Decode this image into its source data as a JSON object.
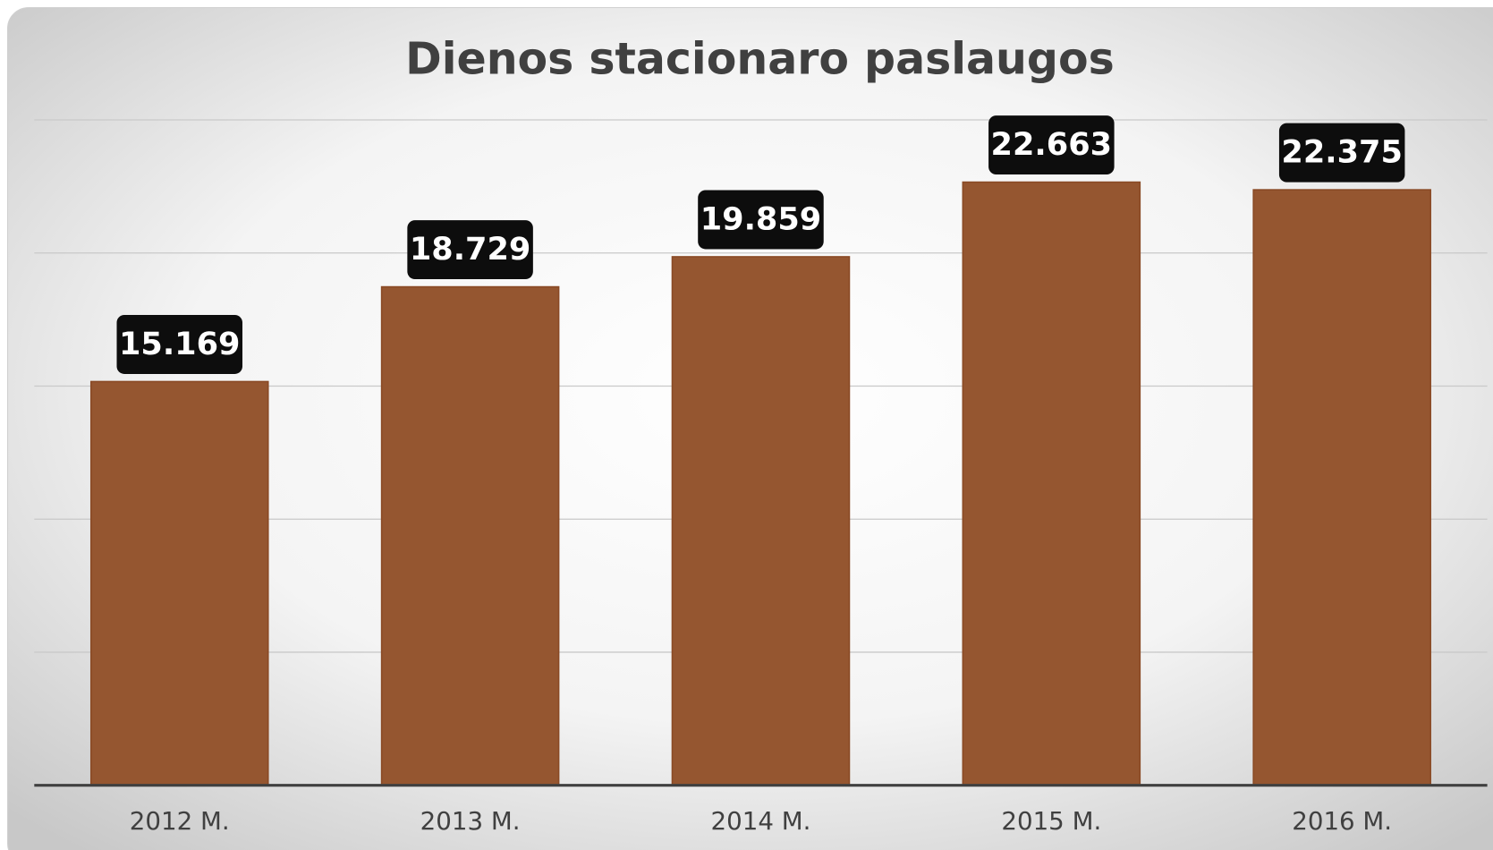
{
  "chart_data": {
    "type": "bar",
    "title": "Dienos stacionaro paslaugos",
    "categories": [
      "2012 M.",
      "2013 M.",
      "2014 M.",
      "2015 M.",
      "2016 M."
    ],
    "values": [
      15.169,
      18.729,
      19.859,
      22.663,
      22.375
    ],
    "color": "#955630",
    "ylim": [
      0,
      25
    ],
    "yticks": [
      0,
      5,
      10,
      15,
      20,
      25
    ],
    "grid": true
  }
}
